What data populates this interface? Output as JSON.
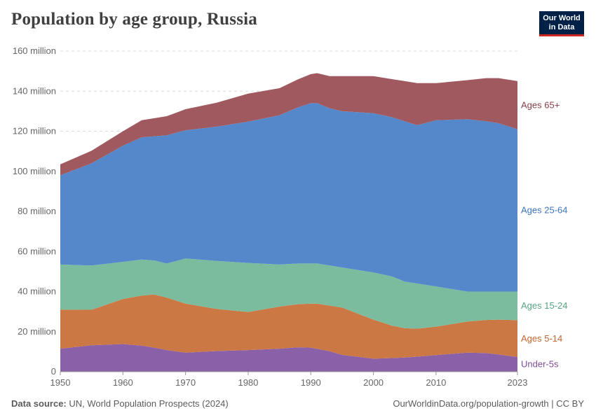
{
  "title": "Population by age group, Russia",
  "logo": {
    "line1": "Our World",
    "line2": "in Data"
  },
  "footer": {
    "source_label": "Data source:",
    "source_text": "UN, World Population Prospects (2024)",
    "url_text": "OurWorldinData.org/population-growth | CC BY"
  },
  "chart_data": {
    "type": "area",
    "stacked": true,
    "title": "Population by age group, Russia",
    "xlabel": "",
    "ylabel": "",
    "xlim": [
      1950,
      2023
    ],
    "ylim": [
      0,
      160000000
    ],
    "x_ticks": [
      1950,
      1960,
      1970,
      1980,
      1990,
      2000,
      2010,
      2023
    ],
    "x_tick_labels": [
      "1950",
      "1960",
      "1970",
      "1980",
      "1990",
      "2000",
      "2010",
      "2023"
    ],
    "y_ticks": [
      0,
      20000000,
      40000000,
      60000000,
      80000000,
      100000000,
      120000000,
      140000000,
      160000000
    ],
    "y_tick_labels": [
      "0",
      "20 million",
      "40 million",
      "60 million",
      "80 million",
      "100 million",
      "120 million",
      "140 million",
      "160 million"
    ],
    "grid": true,
    "x": [
      1950,
      1955,
      1960,
      1963,
      1965,
      1967,
      1970,
      1975,
      1980,
      1985,
      1988,
      1990,
      1991,
      1993,
      1995,
      2000,
      2003,
      2005,
      2007,
      2010,
      2015,
      2018,
      2020,
      2023
    ],
    "series": [
      {
        "name": "Under-5s",
        "color": "#8a60a8",
        "values": [
          11.5,
          13.2,
          13.8,
          13.0,
          12.0,
          10.8,
          9.5,
          10.3,
          10.8,
          11.5,
          12.2,
          12.0,
          11.4,
          10.2,
          8.4,
          6.5,
          6.8,
          7.1,
          7.5,
          8.3,
          9.5,
          9.3,
          8.6,
          7.3
        ]
      },
      {
        "name": "Ages 5-14",
        "color": "#cc7844",
        "values": [
          19.5,
          17.7,
          22.5,
          25.0,
          26.5,
          26.2,
          24.5,
          21.0,
          19.0,
          21.0,
          21.5,
          22.0,
          22.6,
          22.8,
          23.6,
          19.5,
          16.2,
          14.6,
          14.0,
          14.2,
          15.5,
          16.5,
          17.4,
          18.4
        ]
      },
      {
        "name": "Ages 15-24",
        "color": "#7bbc9e",
        "values": [
          22.5,
          22.1,
          18.5,
          18.0,
          17.0,
          17.0,
          22.5,
          24.0,
          24.5,
          21.0,
          20.3,
          20.0,
          20.0,
          20.0,
          20.0,
          23.5,
          24.5,
          23.3,
          22.5,
          20.0,
          15.0,
          14.2,
          14.0,
          14.3
        ]
      },
      {
        "name": "Ages 25-64",
        "color": "#5588cb",
        "values": [
          44.5,
          51.0,
          58.0,
          61.0,
          62.0,
          64.0,
          64.0,
          67.0,
          70.5,
          74.5,
          78.0,
          80.0,
          80.0,
          78.5,
          78.0,
          79.5,
          79.5,
          80.0,
          79.0,
          83.0,
          86.0,
          85.0,
          84.0,
          81.0
        ]
      },
      {
        "name": "Ages 65+",
        "color": "#a05a5f",
        "values": [
          5.5,
          6.3,
          7.2,
          8.5,
          9.0,
          9.5,
          10.5,
          12.0,
          14.0,
          13.5,
          14.0,
          14.5,
          15.0,
          16.0,
          17.5,
          18.5,
          19.0,
          20.0,
          21.0,
          18.5,
          19.5,
          21.5,
          22.5,
          24.0
        ]
      }
    ],
    "units": "million",
    "legend": "inline-right"
  }
}
